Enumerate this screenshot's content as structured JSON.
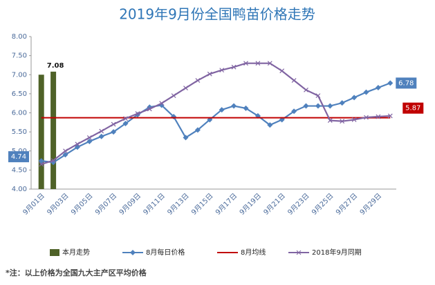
{
  "chart_data": {
    "type": "combo",
    "title": "2019年9月份全国鸭苗价格走势",
    "categories": [
      "9月01日",
      null,
      "9月03日",
      null,
      "9月05日",
      null,
      "9月07日",
      null,
      "9月09日",
      null,
      "9月11日",
      null,
      "9月13日",
      null,
      "9月15日",
      null,
      "9月17日",
      null,
      "9月19日",
      null,
      "9月21日",
      null,
      "9月23日",
      null,
      "9月25日",
      null,
      "9月27日",
      null,
      "9月29日",
      null
    ],
    "ylim": [
      4.0,
      8.0
    ],
    "yticks": [
      {
        "value": 4.0,
        "label": "4.00"
      },
      {
        "value": 4.5,
        "label": "4.50"
      },
      {
        "value": 5.0,
        "label": "5.00"
      },
      {
        "value": 5.5,
        "label": "5.50"
      },
      {
        "value": 6.0,
        "label": "6.00"
      },
      {
        "value": 6.5,
        "label": "6.50"
      },
      {
        "value": 7.0,
        "label": "7.00"
      },
      {
        "value": 7.5,
        "label": "7.50"
      },
      {
        "value": 8.0,
        "label": "8.00"
      }
    ],
    "series": [
      {
        "name": "本月走势",
        "kind": "bar",
        "color": "#4f6228",
        "values": [
          7.0,
          7.08,
          null,
          null,
          null,
          null,
          null,
          null,
          null,
          null,
          null,
          null,
          null,
          null,
          null,
          null,
          null,
          null,
          null,
          null,
          null,
          null,
          null,
          null,
          null,
          null,
          null,
          null,
          null,
          null
        ]
      },
      {
        "name": "8月每日价格",
        "kind": "line",
        "marker": "diamond",
        "color": "#4f81bd",
        "values": [
          4.74,
          4.7,
          4.9,
          5.1,
          5.25,
          5.38,
          5.5,
          5.72,
          5.95,
          6.15,
          6.2,
          5.9,
          5.35,
          5.55,
          5.82,
          6.08,
          6.18,
          6.12,
          5.92,
          5.68,
          5.82,
          6.04,
          6.18,
          6.18,
          6.18,
          6.26,
          6.4,
          6.54,
          6.66,
          6.78
        ]
      },
      {
        "name": "8月均线",
        "kind": "line",
        "marker": "none",
        "color": "#c00000",
        "values": [
          5.87,
          5.87,
          5.87,
          5.87,
          5.87,
          5.87,
          5.87,
          5.87,
          5.87,
          5.87,
          5.87,
          5.87,
          5.87,
          5.87,
          5.87,
          5.87,
          5.87,
          5.87,
          5.87,
          5.87,
          5.87,
          5.87,
          5.87,
          5.87,
          5.87,
          5.87,
          5.87,
          5.87,
          5.87,
          5.87
        ]
      },
      {
        "name": "2018年9月同期",
        "kind": "line",
        "marker": "x",
        "color": "#8064a2",
        "values": [
          4.65,
          4.75,
          5.0,
          5.18,
          5.35,
          5.52,
          5.7,
          5.85,
          5.98,
          6.1,
          6.25,
          6.45,
          6.65,
          6.85,
          7.02,
          7.12,
          7.2,
          7.3,
          7.3,
          7.3,
          7.1,
          6.85,
          6.6,
          6.45,
          5.8,
          5.78,
          5.82,
          5.88,
          5.9,
          5.92
        ]
      }
    ],
    "note": "*注：以上价格为全国九大主产区平均价格"
  }
}
